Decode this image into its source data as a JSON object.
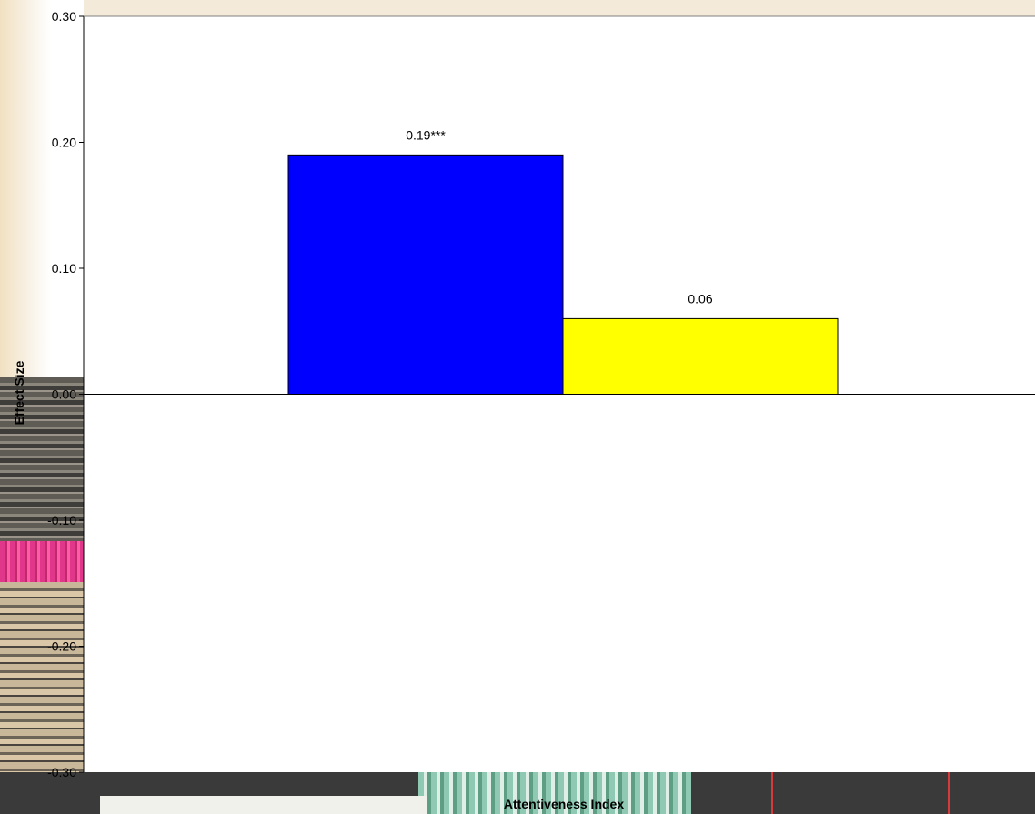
{
  "chart_data": {
    "type": "bar",
    "title": "",
    "xlabel": "Attentiveness Index",
    "ylabel": "Effect Size",
    "ylim": [
      -0.3,
      0.3
    ],
    "yticks": [
      "0.30",
      "0.20",
      "0.10",
      "0.00",
      "-0.10",
      "-0.20",
      "-0.30"
    ],
    "ytick_values": [
      0.3,
      0.2,
      0.1,
      0.0,
      -0.1,
      -0.2,
      -0.3
    ],
    "categories": [
      "Attentiveness Index"
    ],
    "grid": false,
    "series": [
      {
        "values": [
          0.19
        ],
        "label": "0.19***",
        "color": "#0000ff"
      },
      {
        "values": [
          0.06
        ],
        "label": "0.06",
        "color": "#ffff00"
      }
    ]
  }
}
